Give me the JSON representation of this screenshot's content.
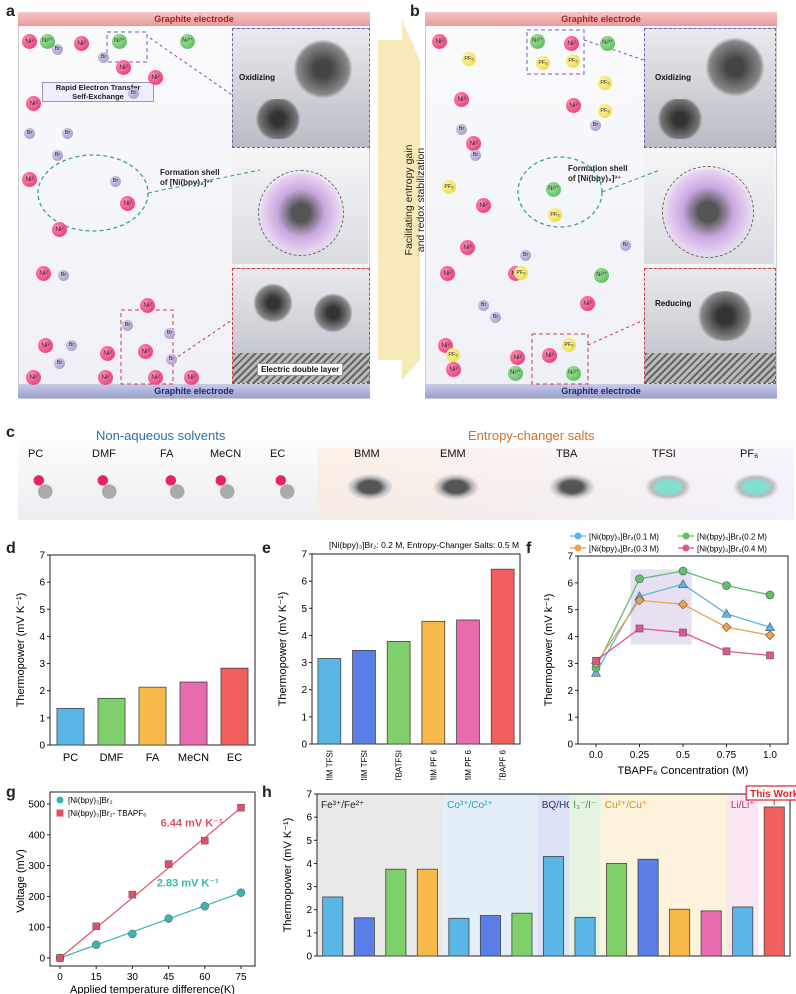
{
  "panels": {
    "a": "a",
    "b": "b",
    "c": "c",
    "d": "d",
    "e": "e",
    "f": "f",
    "g": "g",
    "h": "h"
  },
  "schematic": {
    "electrode_top": "Graphite electrode",
    "electrode_bottom": "Graphite electrode",
    "rapid_transfer": "Rapid Electron Transfer",
    "self_exchange": "Self-Exchange",
    "oxidizing": "Oxidizing",
    "reducing": "Reducing",
    "formation_shell_a_1": "Formation shell",
    "formation_shell_a_2": "of [Ni(bpy)₃]³⁺",
    "formation_shell_b_1": "Formation shell",
    "formation_shell_b_2": "of [Ni(bpy)₃]³⁺",
    "edl": "Electric double layer",
    "middle_arrow_1": "Facilitating entropy gain",
    "middle_arrow_2": "and redox stabilization",
    "ion_ni": "Ni²",
    "ion_ni3": "Ni³⁺",
    "ion_br": "Br",
    "ion_pf": "PF₆",
    "electron": "e",
    "minus": "⊖"
  },
  "molecules": {
    "solvents_title": "Non-aqueous solvents",
    "salts_title": "Entropy-changer salts",
    "solvents": [
      "PC",
      "DMF",
      "FA",
      "MeCN",
      "EC"
    ],
    "salts": [
      "BMM",
      "EMM",
      "TBA",
      "TFSI",
      "PF₆"
    ]
  },
  "colors": {
    "title_blue": "#2f6fa8",
    "title_orange": "#d2702a",
    "bar_d": [
      "#5ab6e6",
      "#7fcf6a",
      "#f6b94a",
      "#e86bb0",
      "#f2605e"
    ],
    "bar_e": [
      "#5ab6e6",
      "#5a7fe6",
      "#7fcf6a",
      "#f6b94a",
      "#e86bb0",
      "#f2605e"
    ],
    "series_f": [
      "#5ab6e6",
      "#5fc26a",
      "#f0a04b",
      "#e0558f"
    ],
    "series_g": [
      "#38b6b0",
      "#e0506a"
    ]
  },
  "chart_data": [
    {
      "id": "d",
      "type": "bar",
      "categories": [
        "PC",
        "DMF",
        "FA",
        "MeCN",
        "EC"
      ],
      "values": [
        1.35,
        1.72,
        2.13,
        2.32,
        2.83
      ],
      "ylabel": "Thermopower (mV K⁻¹)",
      "ylim": [
        0,
        7
      ],
      "yticks": [
        "0",
        "1",
        "2",
        "3",
        "4",
        "5",
        "6",
        "7"
      ]
    },
    {
      "id": "e",
      "type": "bar",
      "title": "[Ni(bpy)₃]Br₂: 0.2 M, Entropy-Changer Salts: 0.5 M",
      "categories": [
        "BMIM TFSI",
        "EMIM TFSI",
        "TBATFSI",
        "BMIM PF 6",
        "EMIM PF 6",
        "TBAPF 6"
      ],
      "values": [
        3.15,
        3.45,
        3.78,
        4.52,
        4.57,
        6.44
      ],
      "ylabel": "Thermopower (mV K⁻¹)",
      "ylim": [
        0,
        7
      ],
      "yticks": [
        "0",
        "1",
        "2",
        "3",
        "4",
        "5",
        "6",
        "7"
      ]
    },
    {
      "id": "f",
      "type": "line",
      "x": [
        0,
        0.25,
        0.5,
        0.75,
        1.0
      ],
      "xticks": [
        "0.0",
        "0.25",
        "0.5",
        "0.75",
        "1.0"
      ],
      "xlabel": "TBAPF₆ Concentration (M)",
      "ylabel": "Thermopower (mV k⁻¹)",
      "ylim": [
        0,
        7
      ],
      "yticks": [
        "0",
        "1",
        "2",
        "3",
        "4",
        "5",
        "6",
        "7"
      ],
      "series": [
        {
          "name": "[Ni(bpy)₃]Br₂(0.1 M)",
          "values": [
            2.65,
            5.5,
            5.95,
            4.85,
            4.35
          ]
        },
        {
          "name": "[Ni(bpy)₃]Br₂(0.2 M)",
          "values": [
            2.83,
            6.15,
            6.44,
            5.9,
            5.55
          ]
        },
        {
          "name": "[Ni(bpy)₃]Br₂(0.3 M)",
          "values": [
            3.0,
            5.35,
            5.2,
            4.35,
            4.05
          ]
        },
        {
          "name": "[Ni(bpy)₃]Br₂(0.4 M)",
          "values": [
            3.1,
            4.3,
            4.15,
            3.45,
            3.3
          ]
        }
      ]
    },
    {
      "id": "g",
      "type": "scatter",
      "x": [
        0,
        15,
        30,
        45,
        60,
        75
      ],
      "xticks": [
        "0",
        "15",
        "30",
        "45",
        "60",
        "75"
      ],
      "xlabel": "Applied temperature difference(K)",
      "ylabel": "Voltage (mV)",
      "ylim": [
        0,
        500
      ],
      "yticks": [
        "0",
        "100",
        "200",
        "300",
        "400",
        "500"
      ],
      "series": [
        {
          "name": "[Ni(bpy)₃]Br₂",
          "values": [
            0,
            43,
            78,
            128,
            168,
            212
          ],
          "annotation": "2.83 mV K⁻¹"
        },
        {
          "name": "[Ni(bpy)₃]Br₂- TBAPF₆",
          "values": [
            0,
            103,
            206,
            305,
            381,
            488
          ],
          "annotation": "6.44 mV K⁻¹"
        }
      ]
    },
    {
      "id": "h",
      "type": "bar",
      "ylabel": "Thermopower (mV K⁻¹)",
      "ylim": [
        0,
        7
      ],
      "yticks": [
        "0",
        "1",
        "2",
        "3",
        "4",
        "5",
        "6",
        "7"
      ],
      "values": [
        2.55,
        1.65,
        3.75,
        3.75,
        1.63,
        1.75,
        1.85,
        4.3,
        1.67,
        4.0,
        4.18,
        2.02,
        1.95,
        2.12,
        6.44
      ],
      "bar_colors": [
        "#5ab6e6",
        "#5a7fe6",
        "#7fcf6a",
        "#f6b94a",
        "#5ab6e6",
        "#5a7fe6",
        "#7fcf6a",
        "#5ab6e6",
        "#5ab6e6",
        "#7fcf6a",
        "#5a7fe6",
        "#f6b94a",
        "#e86bb0",
        "#5ab6e6",
        "#f2605e"
      ],
      "groups": [
        {
          "label": "Fe³⁺/Fe²⁺",
          "start": 0,
          "end": 4,
          "bg": "#e9e9e9",
          "color": "#222"
        },
        {
          "label": "Co³⁺/Co²⁺",
          "start": 4,
          "end": 7,
          "bg": "#e3eef9",
          "color": "#2aa0b8"
        },
        {
          "label": "BQ/HQ",
          "start": 7,
          "end": 8,
          "bg": "#dde3f5",
          "color": "#20307a"
        },
        {
          "label": "I₃⁻/I⁻",
          "start": 8,
          "end": 9,
          "bg": "#e5f3e0",
          "color": "#3a9a40"
        },
        {
          "label": "Cu²⁺/Cu⁺",
          "start": 9,
          "end": 13,
          "bg": "#fdf3dc",
          "color": "#c98d20"
        },
        {
          "label": "Li/Li⁺",
          "start": 13,
          "end": 14,
          "bg": "#fae5f2",
          "color": "#c3257a"
        }
      ],
      "highlight_label": "This Work"
    }
  ]
}
